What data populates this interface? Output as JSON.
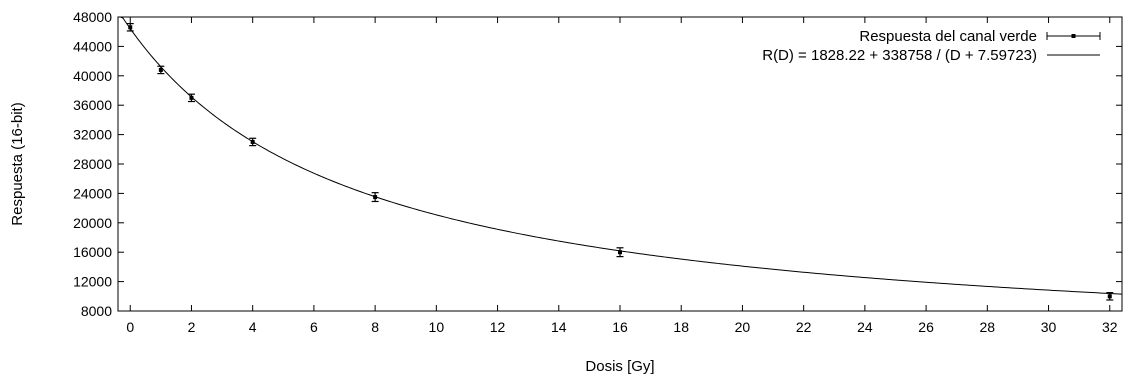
{
  "chart_data": {
    "type": "scatter",
    "title": "",
    "xlabel": "Dosis [Gy]",
    "ylabel": "Respuesta (16-bit)",
    "xlim": [
      -0.4,
      32.4
    ],
    "ylim": [
      8000,
      48000
    ],
    "xticks": [
      0,
      2,
      4,
      6,
      8,
      10,
      12,
      14,
      16,
      18,
      20,
      22,
      24,
      26,
      28,
      30,
      32
    ],
    "xtick_labels": [
      "0",
      "2",
      "4",
      "6",
      "8",
      "10",
      "12",
      "14",
      "16",
      "18",
      "20",
      "22",
      "24",
      "26",
      "28",
      "30",
      "32"
    ],
    "yticks": [
      8000,
      12000,
      16000,
      20000,
      24000,
      28000,
      32000,
      36000,
      40000,
      44000,
      48000
    ],
    "ytick_labels": [
      "8000",
      "12000",
      "16000",
      "20000",
      "24000",
      "28000",
      "32000",
      "36000",
      "40000",
      "44000",
      "48000"
    ],
    "grid": false,
    "legend_position": "top-right",
    "series": [
      {
        "name": "Respuesta del canal verde",
        "style": "points-with-error-bars",
        "color": "#000000",
        "x": [
          0,
          1,
          2,
          4,
          8,
          16,
          32
        ],
        "y": [
          46600,
          40800,
          37000,
          31000,
          23500,
          16000,
          10000
        ],
        "y_error": [
          500,
          500,
          500,
          500,
          600,
          600,
          500
        ],
        "x_error": [
          0,
          0,
          0,
          0,
          0,
          0,
          0
        ]
      },
      {
        "name": "R(D) = 1828.22 + 338758 / (D + 7.59723)",
        "style": "line",
        "color": "#000000",
        "model": {
          "a": 1828.22,
          "b": 338758,
          "c": 7.59723
        }
      }
    ]
  }
}
